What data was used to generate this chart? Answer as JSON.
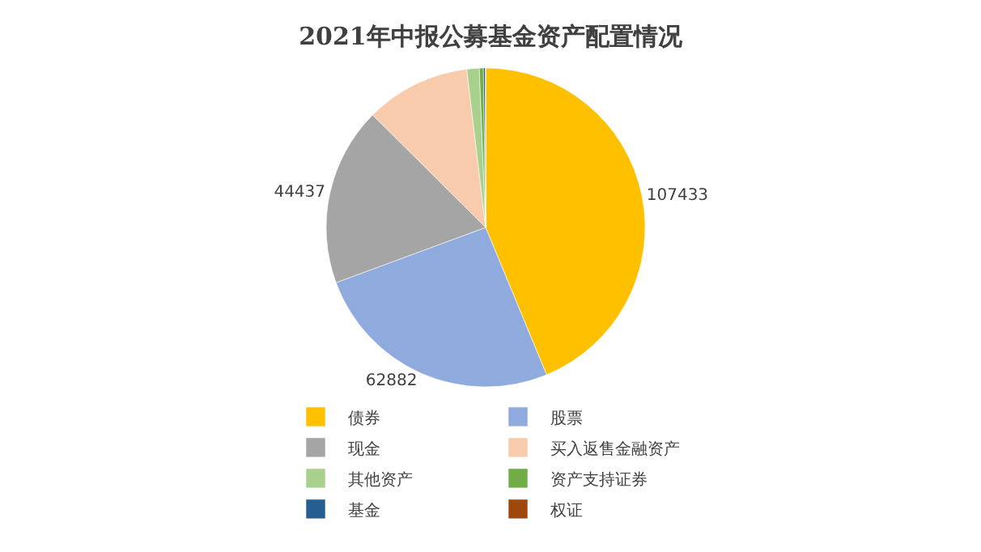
{
  "chart_data": {
    "type": "pie",
    "title": "2021年中报公募基金资产配置情况",
    "categories": [
      "债券",
      "股票",
      "现金",
      "买入返售金融资产",
      "其他资产",
      "资产支持证券",
      "基金",
      "权证"
    ],
    "values": [
      107433,
      62882,
      44437,
      26100,
      3100,
      1000,
      500,
      50
    ],
    "value_labels": [
      "107433",
      "62882",
      "44437",
      null,
      null,
      null,
      null,
      null
    ],
    "colors": [
      "#ffc000",
      "#8faadc",
      "#a5a5a5",
      "#f8cbad",
      "#a9d18e",
      "#70ad47",
      "#255e91",
      "#9e480e"
    ],
    "legend": "bottom"
  }
}
